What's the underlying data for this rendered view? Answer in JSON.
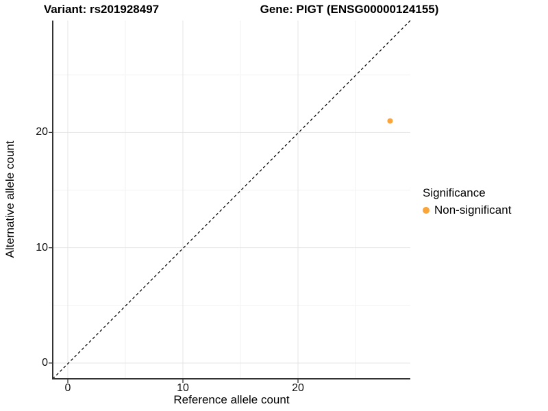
{
  "figure": {
    "title_left": "Variant: rs201928497",
    "title_right": "Gene: PIGT (ENSG00000124155)"
  },
  "chart_data": {
    "type": "scatter",
    "title": "Variant: rs201928497 / Gene: PIGT (ENSG00000124155)",
    "xlabel": "Reference allele count",
    "ylabel": "Alternative allele count",
    "xlim": [
      -1.31,
      29.76
    ],
    "ylim": [
      -1.37,
      29.71
    ],
    "x_ticks": [
      0,
      10,
      20
    ],
    "y_ticks": [
      0,
      10,
      20
    ],
    "x_minor_ticks": [
      5,
      15,
      25
    ],
    "y_minor_ticks": [
      5,
      15,
      25
    ],
    "grid": "on",
    "points": [
      {
        "x": 28,
        "y": 21,
        "series": "Non-significant"
      }
    ],
    "identity_line": {
      "style": "dashed",
      "x": [
        -1.31,
        29.76
      ],
      "y": [
        -1.37,
        29.71
      ]
    },
    "legend": {
      "title": "Significance",
      "position": "right",
      "items": [
        {
          "label": "Non-significant",
          "color": "#FAA43A"
        }
      ]
    },
    "colors": {
      "point": "#FAA43A",
      "grid_major": "#E4E4E4",
      "grid_minor": "#F2F2F2",
      "axis_line": "#333333",
      "tick": "#333333",
      "dashed_line": "#0a0a0a"
    }
  }
}
